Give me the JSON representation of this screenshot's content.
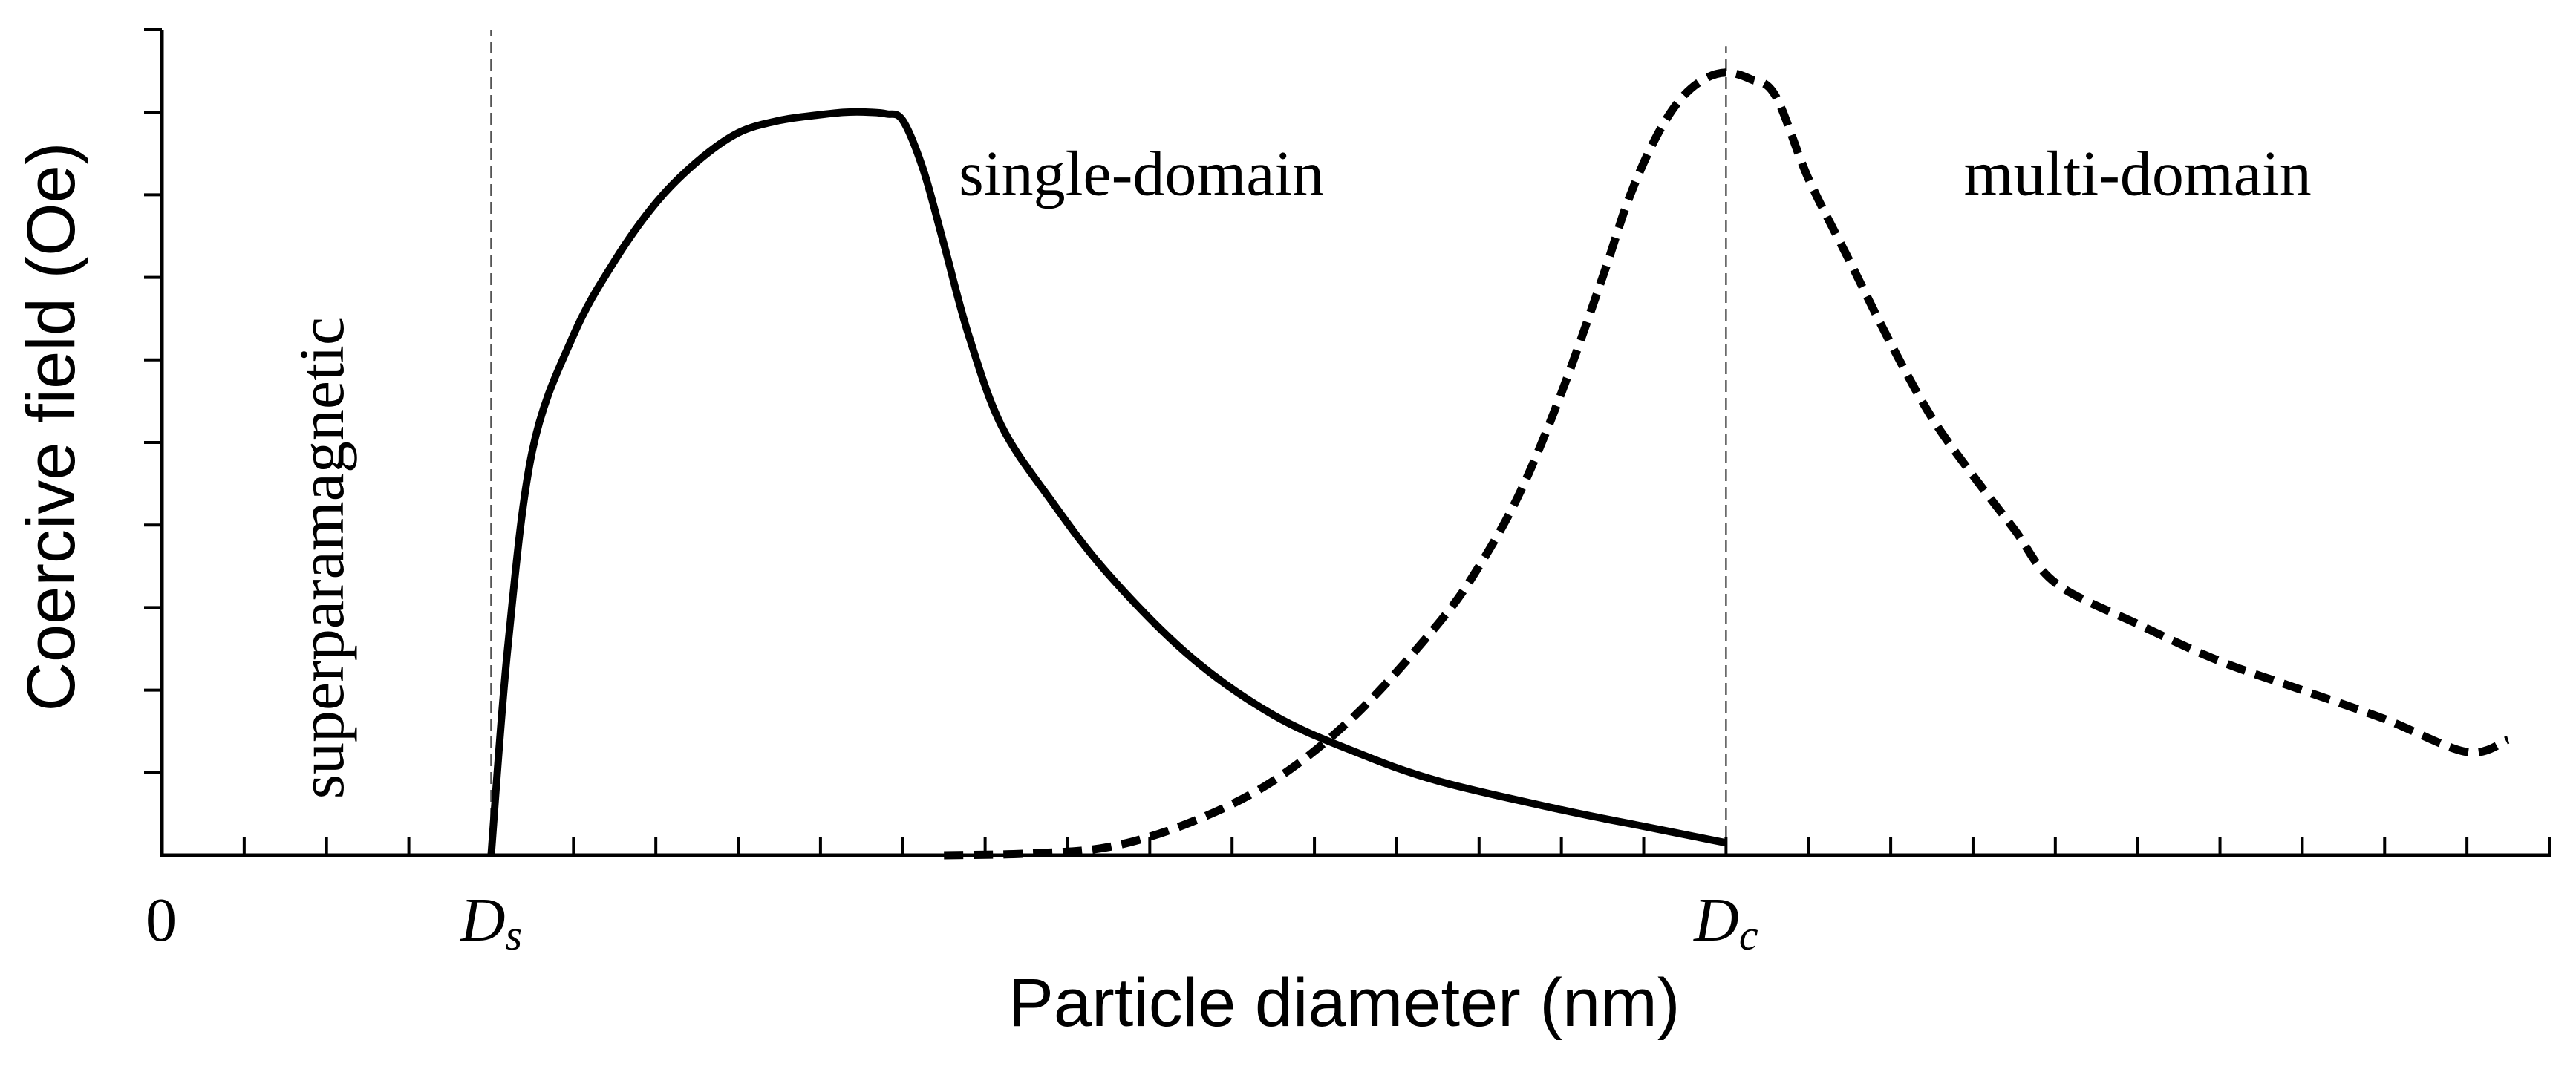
{
  "chart_data": {
    "type": "line",
    "xlabel": "Particle diameter (nm)",
    "ylabel": "Coercive field (Oe)",
    "xlim": [
      0,
      29
    ],
    "ylim": [
      0,
      10
    ],
    "x_tick_labels": [
      {
        "x": 0,
        "main": "0",
        "sub": ""
      },
      {
        "x": 4,
        "main": "D",
        "sub": "s"
      },
      {
        "x": 19,
        "main": "D",
        "sub": "c"
      }
    ],
    "x_minor_ticks": [
      1,
      2,
      3,
      4,
      5,
      6,
      7,
      8,
      9,
      10,
      11,
      12,
      13,
      14,
      15,
      16,
      17,
      18,
      19,
      20,
      21,
      22,
      23,
      24,
      25,
      26,
      27,
      28,
      29
    ],
    "y_minor_ticks": [
      1,
      2,
      3,
      4,
      5,
      6,
      7,
      8,
      9,
      10
    ],
    "reference_lines": [
      {
        "x": 4,
        "y_top": 10,
        "style": "dashed"
      },
      {
        "x": 19,
        "y_top": 9.8,
        "style": "dashed"
      }
    ],
    "annotations": [
      {
        "text": "superparamagnetic",
        "x": 2.2,
        "y": 3.6,
        "rotation": -90
      },
      {
        "text": "single-domain",
        "x": 11.9,
        "y": 8.0,
        "rotation": 0
      },
      {
        "text": "multi-domain",
        "x": 24.0,
        "y": 8.0,
        "rotation": 0
      }
    ],
    "series": [
      {
        "style": "solid",
        "x": [
          4.0,
          4.2,
          4.5,
          5.0,
          5.5,
          6.0,
          6.5,
          7.0,
          7.5,
          8.0,
          8.3,
          8.6,
          8.8,
          9.0,
          9.25,
          9.5,
          9.8,
          10.2,
          10.8,
          11.5,
          12.5,
          13.5,
          14.5,
          15.5,
          17.0,
          18.0,
          19.0
        ],
        "y": [
          0.0,
          2.5,
          4.9,
          6.3,
          7.2,
          7.9,
          8.4,
          8.75,
          8.9,
          8.97,
          9.0,
          9.0,
          8.98,
          8.9,
          8.3,
          7.4,
          6.3,
          5.2,
          4.3,
          3.4,
          2.4,
          1.7,
          1.25,
          0.9,
          0.55,
          0.35,
          0.15
        ]
      },
      {
        "style": "dashed",
        "x": [
          9.5,
          10.5,
          11.5,
          12.5,
          13.5,
          14.5,
          15.5,
          16.0,
          16.5,
          17.0,
          17.5,
          17.8,
          18.1,
          18.4,
          18.7,
          19.0,
          19.3,
          19.6,
          20.0,
          20.5,
          21.0,
          21.5,
          22.0,
          22.5,
          23.0,
          24.0,
          25.0,
          26.0,
          27.0,
          28.0,
          28.5
        ],
        "y": [
          0.0,
          0.02,
          0.1,
          0.4,
          0.9,
          1.7,
          2.8,
          3.5,
          4.4,
          5.6,
          7.0,
          7.9,
          8.6,
          9.1,
          9.38,
          9.48,
          9.4,
          9.2,
          8.2,
          7.2,
          6.2,
          5.3,
          4.6,
          3.95,
          3.3,
          2.8,
          2.35,
          2.0,
          1.65,
          1.25,
          1.4
        ]
      }
    ]
  }
}
